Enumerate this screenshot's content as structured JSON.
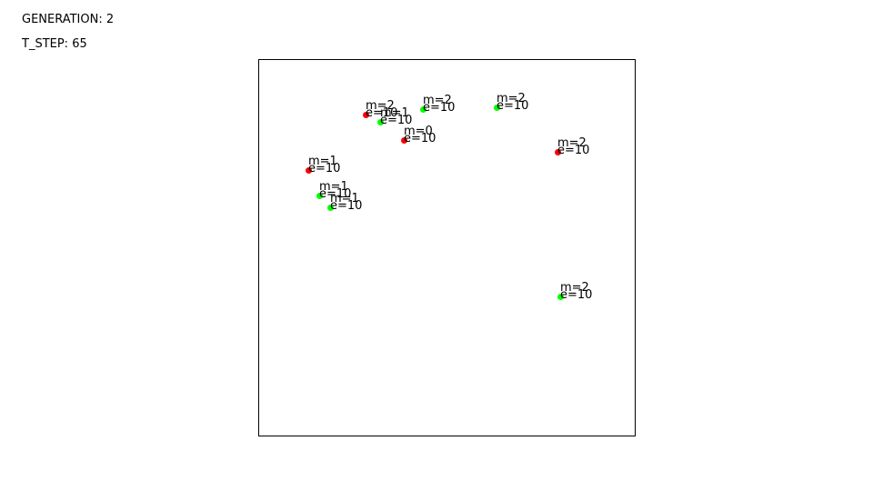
{
  "hud": {
    "generation_label": "GENERATION:",
    "generation": 2,
    "tstep_label": "T_STEP:",
    "tstep": 65
  },
  "colors": {
    "red": "#ff0000",
    "green": "#00ff00"
  },
  "agents": [
    {
      "color": "red",
      "m_label": "m=2",
      "e_label": "e=10"
    },
    {
      "color": "green",
      "m_label": "m=1",
      "e_label": "e=10"
    },
    {
      "color": "green",
      "m_label": "m=2",
      "e_label": "e=10"
    },
    {
      "color": "green",
      "m_label": "m=2",
      "e_label": "e=10"
    },
    {
      "color": "red",
      "m_label": "m=0",
      "e_label": "e=10"
    },
    {
      "color": "red",
      "m_label": "m=2",
      "e_label": "e=10"
    },
    {
      "color": "red",
      "m_label": "m=1",
      "e_label": "e=10"
    },
    {
      "color": "green",
      "m_label": "m=1",
      "e_label": "e=10"
    },
    {
      "color": "green",
      "m_label": "m=1",
      "e_label": "e=10"
    },
    {
      "color": "green",
      "m_label": "m=2",
      "e_label": "e=10"
    }
  ]
}
